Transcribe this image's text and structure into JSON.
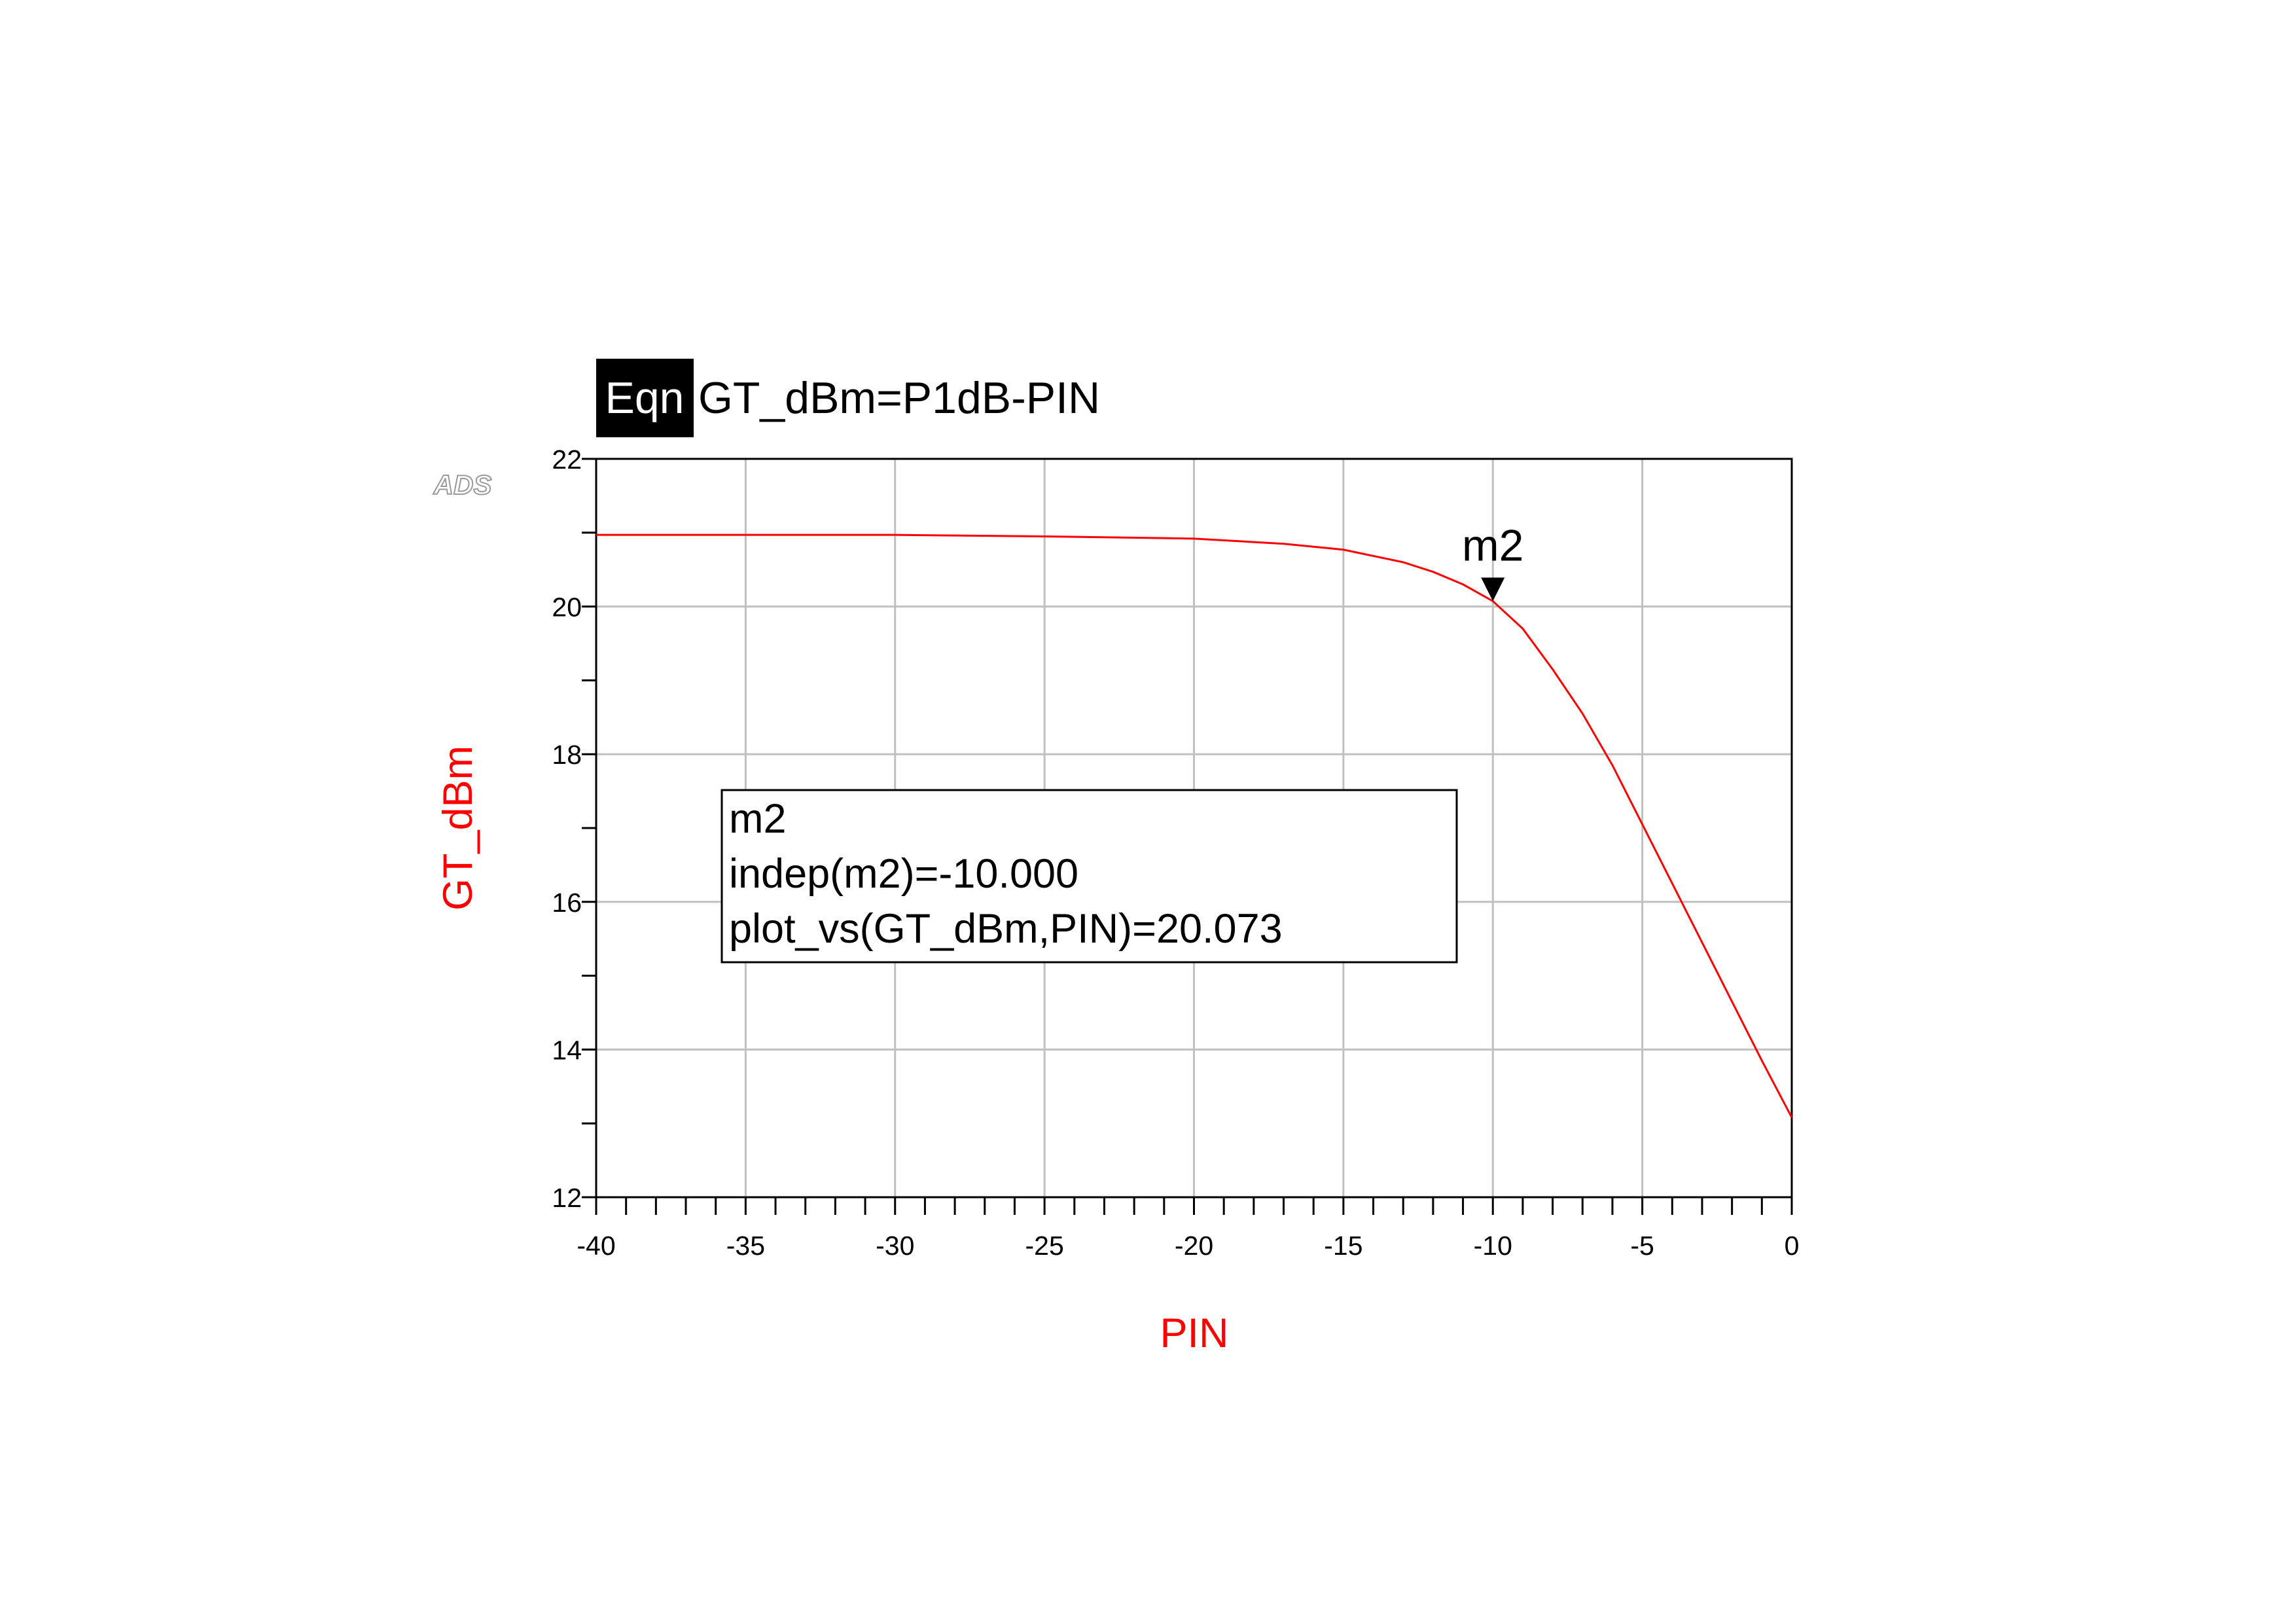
{
  "chart_data": {
    "type": "line",
    "equation": {
      "tag": "Eqn",
      "text": "GT_dBm=P1dB-PIN"
    },
    "watermark": "ADS",
    "x_label": "PIN",
    "y_label": "GT_dBm",
    "x": [
      -40,
      -35,
      -30,
      -25,
      -20,
      -17,
      -15,
      -13,
      -12,
      -11,
      -10,
      -9,
      -8,
      -7,
      -6,
      -5,
      -4,
      -3,
      -2,
      -1,
      0
    ],
    "values": [
      20.97,
      20.97,
      20.97,
      20.95,
      20.92,
      20.85,
      20.77,
      20.6,
      20.47,
      20.3,
      20.073,
      19.7,
      19.15,
      18.55,
      17.85,
      17.05,
      16.25,
      15.45,
      14.65,
      13.85,
      13.08
    ],
    "color": "#ff0000",
    "xlim": [
      -40,
      0
    ],
    "ylim": [
      12,
      22
    ],
    "xticks": [
      -40,
      -35,
      -30,
      -25,
      -20,
      -15,
      -10,
      -5,
      0
    ],
    "yticks": [
      12,
      14,
      16,
      18,
      20,
      22
    ],
    "grid": true,
    "marker": {
      "label": "m2",
      "x": -10,
      "y": 20.073
    },
    "readout": [
      "m2",
      "indep(m2)=-10.000",
      "plot_vs(GT_dBm,PIN)=20.073"
    ]
  }
}
